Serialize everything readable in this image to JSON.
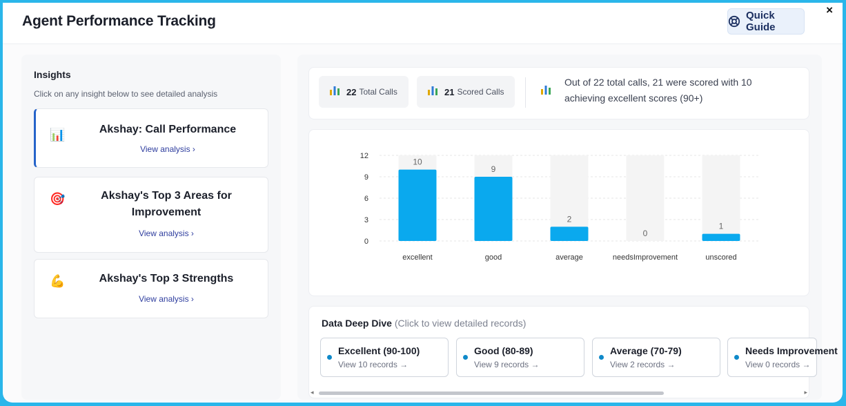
{
  "header": {
    "title": "Agent Performance Tracking",
    "quick_guide_label": "Quick Guide",
    "close_glyph": "×"
  },
  "insights": {
    "title": "Insights",
    "subtitle": "Click on any insight below to see detailed analysis",
    "cards": [
      {
        "icon": "bar-chart-icon",
        "icon_glyph": "📊",
        "title": "Akshay: Call Performance",
        "link": "View analysis  ›"
      },
      {
        "icon": "target-icon",
        "icon_glyph": "🎯",
        "title": "Akshay's Top 3 Areas for Improvement",
        "link": "View analysis  ›"
      },
      {
        "icon": "flexed-biceps-icon",
        "icon_glyph": "💪",
        "title": "Akshay's Top 3 Strengths",
        "link": "View analysis  ›"
      }
    ]
  },
  "summary": {
    "total_calls_value": "22",
    "total_calls_label": "Total Calls",
    "scored_calls_value": "21",
    "scored_calls_label": "Scored Calls",
    "text": "Out of 22 total calls, 21 were scored with 10 achieving excellent scores (90+)"
  },
  "chart_data": {
    "type": "bar",
    "categories": [
      "excellent",
      "good",
      "average",
      "needsImprovement",
      "unscored"
    ],
    "values": [
      10,
      9,
      2,
      0,
      1
    ],
    "yticks": [
      0,
      3,
      6,
      9,
      12
    ],
    "ylim": [
      0,
      12
    ],
    "title": "",
    "xlabel": "",
    "ylabel": "",
    "colors": {
      "bar": "#0aa9ee",
      "background_bar": "#f4f4f4",
      "grid": "#e6e6e6"
    }
  },
  "deep_dive": {
    "title": "Data Deep Dive",
    "hint": "(Click to view detailed records)",
    "items": [
      {
        "name": "Excellent (90-100)",
        "link": "View 10 records →"
      },
      {
        "name": "Good (80-89)",
        "link": "View 9 records →"
      },
      {
        "name": "Average (70-79)",
        "link": "View 2 records →"
      },
      {
        "name": "Needs Improvement",
        "link": "View 0 records →"
      }
    ]
  }
}
